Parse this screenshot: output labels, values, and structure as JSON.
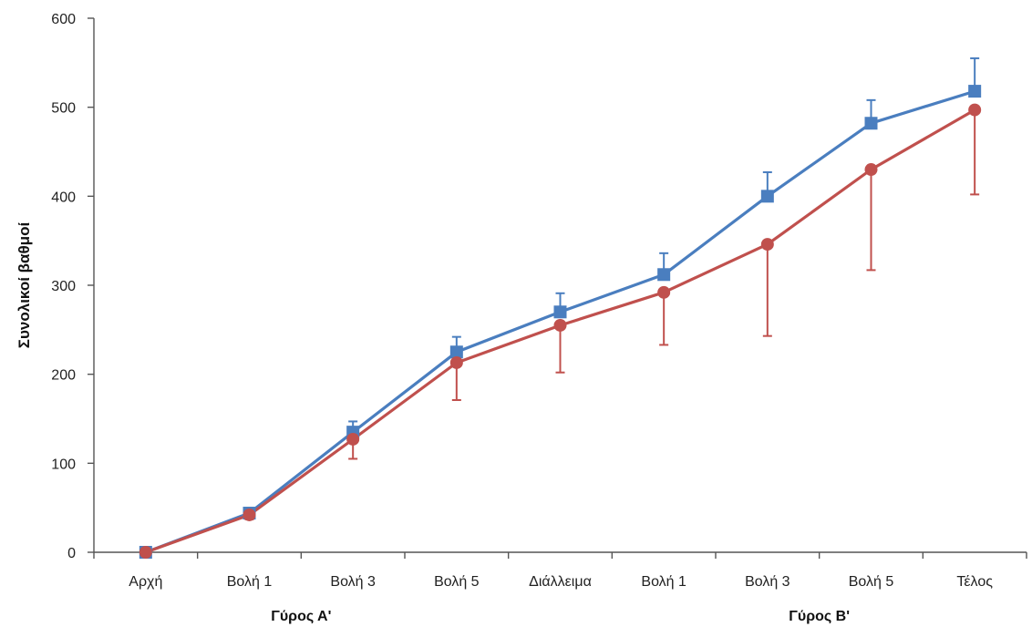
{
  "chart_data": {
    "type": "line",
    "ylabel": "Συνολικοί βαθμοί",
    "ylim": [
      0,
      600
    ],
    "yticks": [
      0,
      100,
      200,
      300,
      400,
      500,
      600
    ],
    "categories": [
      "Αρχή",
      "Βολή 1",
      "Βολή 3",
      "Βολή 5",
      "Διάλλειμα",
      "Βολή 1",
      "Βολή 3",
      "Βολή 5",
      "Τέλος"
    ],
    "groups": [
      {
        "label": "Γύρος Α'",
        "from": 0,
        "to": 3
      },
      {
        "label": "Γύρος Β'",
        "from": 5,
        "to": 8
      }
    ],
    "grid": false,
    "legend": "none",
    "series": [
      {
        "color": "#4a7ebf",
        "marker": "square",
        "values": [
          0,
          44,
          135,
          225,
          270,
          312,
          400,
          482,
          518
        ],
        "error_plus": [
          0,
          5,
          12,
          17,
          21,
          24,
          27,
          26,
          37
        ]
      },
      {
        "color": "#c0504d",
        "marker": "circle",
        "values": [
          0,
          42,
          127,
          213,
          255,
          292,
          346,
          430,
          497
        ],
        "error_minus": [
          0,
          5,
          22,
          42,
          53,
          59,
          103,
          113,
          95
        ]
      }
    ]
  }
}
